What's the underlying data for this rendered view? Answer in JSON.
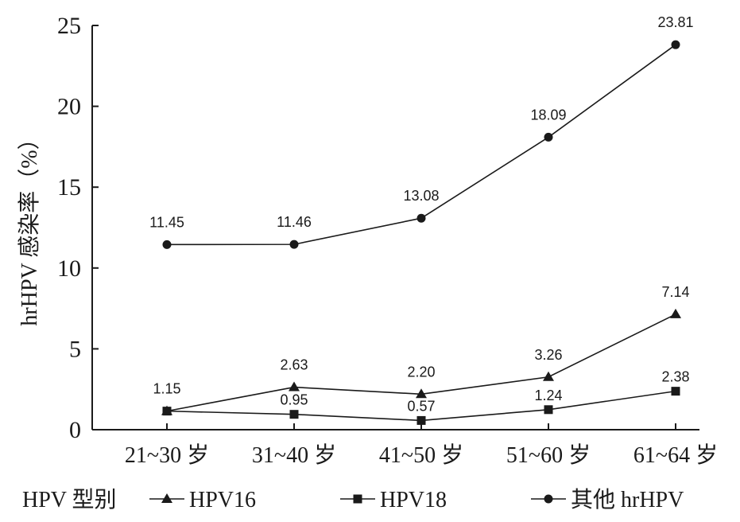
{
  "chart_data": {
    "type": "line",
    "title": "",
    "xlabel": "",
    "ylabel": "hrHPV 感染率（%）",
    "ylim": [
      0,
      25
    ],
    "yticks": [
      "0",
      "5",
      "10",
      "15",
      "20",
      "25"
    ],
    "categories": [
      "21~30 岁",
      "31~40 岁",
      "41~50 岁",
      "51~60 岁",
      "61~64 岁"
    ],
    "series": [
      {
        "name": "HPV16",
        "marker": "triangle",
        "values": [
          1.15,
          2.63,
          2.2,
          3.26,
          7.14
        ],
        "labels": [
          "1.15",
          "2.63",
          "2.20",
          "3.26",
          "7.14"
        ]
      },
      {
        "name": "HPV18",
        "marker": "square",
        "values": [
          1.15,
          0.95,
          0.57,
          1.24,
          2.38
        ],
        "labels": [
          "",
          "0.95",
          "0.57",
          "1.24",
          "2.38"
        ]
      },
      {
        "name": "其他 hrHPV",
        "marker": "circle",
        "values": [
          11.45,
          11.46,
          13.08,
          18.09,
          23.81
        ],
        "labels": [
          "11.45",
          "11.46",
          "13.08",
          "18.09",
          "23.81"
        ]
      }
    ],
    "legend": {
      "title": "HPV 型别",
      "placement": "bottom"
    }
  }
}
